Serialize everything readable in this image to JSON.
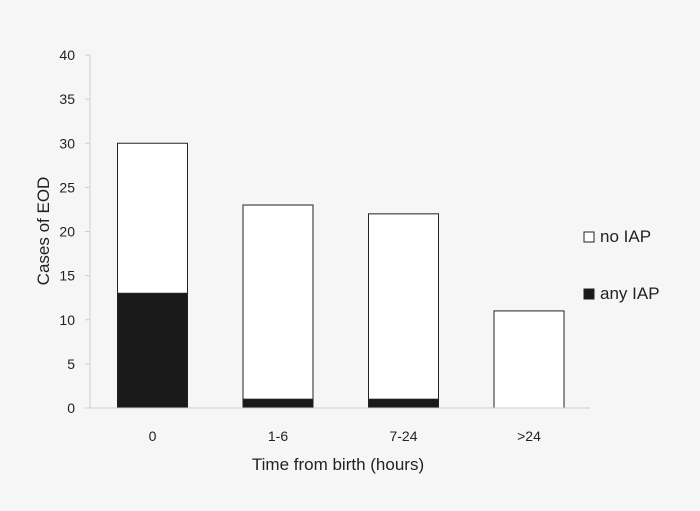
{
  "chart_data": {
    "type": "bar",
    "stacked": true,
    "title": "",
    "xlabel": "Time from birth (hours)",
    "ylabel": "Cases of EOD",
    "categories": [
      "0",
      "1-6",
      "7-24",
      ">24"
    ],
    "ylim": [
      0,
      40
    ],
    "yticks": [
      0,
      5,
      10,
      15,
      20,
      25,
      30,
      35,
      40
    ],
    "grid": false,
    "legend_position": "right",
    "series": [
      {
        "name": "any IAP",
        "values": [
          13,
          1,
          1,
          0
        ],
        "color": "#1a1a1a"
      },
      {
        "name": "no IAP",
        "values": [
          17,
          22,
          21,
          11
        ],
        "color": "#ffffff"
      }
    ],
    "legend_order": [
      "no IAP",
      "any IAP"
    ],
    "colors": {
      "background": "#f6f6f6",
      "axis": "#cfcfcf",
      "outline": "#222222"
    }
  }
}
